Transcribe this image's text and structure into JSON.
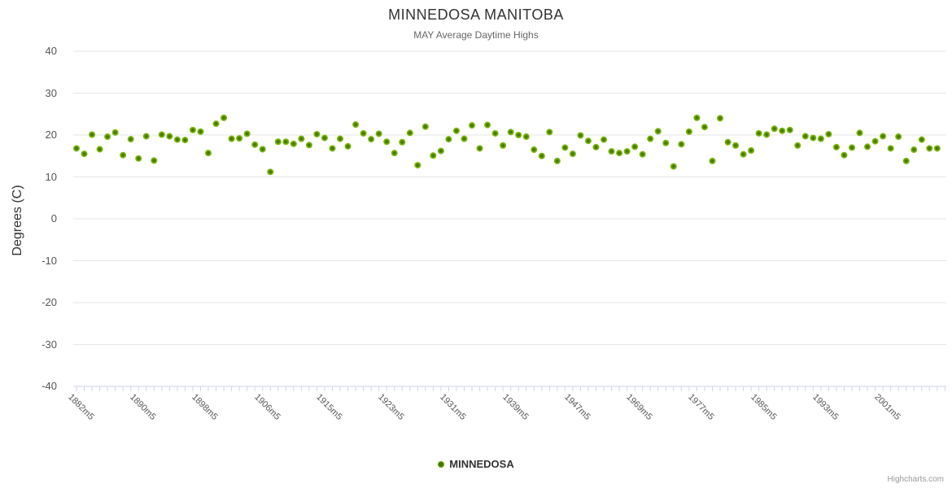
{
  "header": {
    "title": "MINNEDOSA MANITOBA",
    "subtitle": "MAY Average Daytime Highs"
  },
  "legend": {
    "series_label": "MINNEDOSA"
  },
  "credits": {
    "label": "Highcharts.com"
  },
  "colors": {
    "marker_outer": "#7ab602",
    "marker_inner": "#3f7301",
    "grid": "#e6e6e6",
    "axis_line": "#ccd6eb",
    "title": "#333333",
    "subtitle": "#666666",
    "tick_label": "#555555",
    "credits": "#999999"
  },
  "chart_data": {
    "type": "scatter",
    "title": "MINNEDOSA MANITOBA",
    "subtitle": "MAY Average Daytime Highs",
    "xlabel": "",
    "ylabel": "Degrees (C)",
    "ylim": [
      -40,
      40
    ],
    "yticks": [
      40,
      30,
      20,
      10,
      0,
      -10,
      -20,
      -30,
      -40
    ],
    "grid": true,
    "legend_position": "bottom",
    "x_label_every": 8,
    "x_label_rotation": 45,
    "categories": [
      "1882m5",
      "1883m5",
      "1884m5",
      "1885m5",
      "1886m5",
      "1887m5",
      "1888m5",
      "1889m5",
      "1890m5",
      "1891m5",
      "1892m5",
      "1893m5",
      "1894m5",
      "1895m5",
      "1896m5",
      "1897m5",
      "1898m5",
      "1899m5",
      "1900m5",
      "1901m5",
      "1902m5",
      "1903m5",
      "1904m5",
      "1905m5",
      "1906m5",
      "1907m5",
      "1908m5",
      "1909m5",
      "1911m5",
      "1912m5",
      "1913m5",
      "1914m5",
      "1915m5",
      "1916m5",
      "1917m5",
      "1918m5",
      "1919m5",
      "1920m5",
      "1921m5",
      "1922m5",
      "1923m5",
      "1924m5",
      "1925m5",
      "1926m5",
      "1927m5",
      "1928m5",
      "1929m5",
      "1930m5",
      "1931m5",
      "1932m5",
      "1933m5",
      "1934m5",
      "1935m5",
      "1936m5",
      "1937m5",
      "1938m5",
      "1939m5",
      "1940m5",
      "1941m5",
      "1942m5",
      "1943m5",
      "1944m5",
      "1945m5",
      "1946m5",
      "1947m5",
      "1948m5",
      "1949m5",
      "1950m5",
      "1951m5",
      "1952m5",
      "1953m5",
      "1954m5",
      "1969m5",
      "1970m5",
      "1971m5",
      "1972m5",
      "1973m5",
      "1974m5",
      "1975m5",
      "1976m5",
      "1977m5",
      "1978m5",
      "1979m5",
      "1980m5",
      "1981m5",
      "1982m5",
      "1983m5",
      "1984m5",
      "1985m5",
      "1986m5",
      "1987m5",
      "1988m5",
      "1989m5",
      "1990m5",
      "1991m5",
      "1992m5",
      "1993m5",
      "1994m5",
      "1995m5",
      "1996m5",
      "1997m5",
      "1998m5",
      "1999m5",
      "2000m5",
      "2001m5",
      "2002m5",
      "2003m5",
      "2004m5",
      "2005m5",
      "2006m5",
      "2007m5",
      "2008m5"
    ],
    "series": [
      {
        "name": "MINNEDOSA",
        "values": [
          16.8,
          15.5,
          20.1,
          16.6,
          19.6,
          20.6,
          15.2,
          19.0,
          14.4,
          19.7,
          13.9,
          20.1,
          19.7,
          18.9,
          18.8,
          21.2,
          20.8,
          15.7,
          22.7,
          24.1,
          19.1,
          19.2,
          20.3,
          17.7,
          16.6,
          11.2,
          18.4,
          18.4,
          17.9,
          19.1,
          17.6,
          20.2,
          19.3,
          16.8,
          19.1,
          17.3,
          22.5,
          20.4,
          19.0,
          20.3,
          18.4,
          15.7,
          18.3,
          20.5,
          12.8,
          22.0,
          15.1,
          16.2,
          19.0,
          21.0,
          19.1,
          22.3,
          16.8,
          22.4,
          20.4,
          17.5,
          20.7,
          20.0,
          19.6,
          16.5,
          15.0,
          20.7,
          13.8,
          17.0,
          15.5,
          19.9,
          18.6,
          17.1,
          18.9,
          16.1,
          15.7,
          16.1,
          17.2,
          15.4,
          19.1,
          20.9,
          18.1,
          12.5,
          17.8,
          20.8,
          24.1,
          21.9,
          13.8,
          24.0,
          18.3,
          17.5,
          15.4,
          16.3,
          20.4,
          20.1,
          21.5,
          21.0,
          21.2,
          17.5,
          19.7,
          19.3,
          19.1,
          20.2,
          17.1,
          15.2,
          17.0,
          20.5,
          17.2,
          18.5,
          19.7,
          16.8,
          19.6,
          13.8,
          16.5,
          18.9,
          16.8,
          16.8
        ]
      }
    ]
  }
}
